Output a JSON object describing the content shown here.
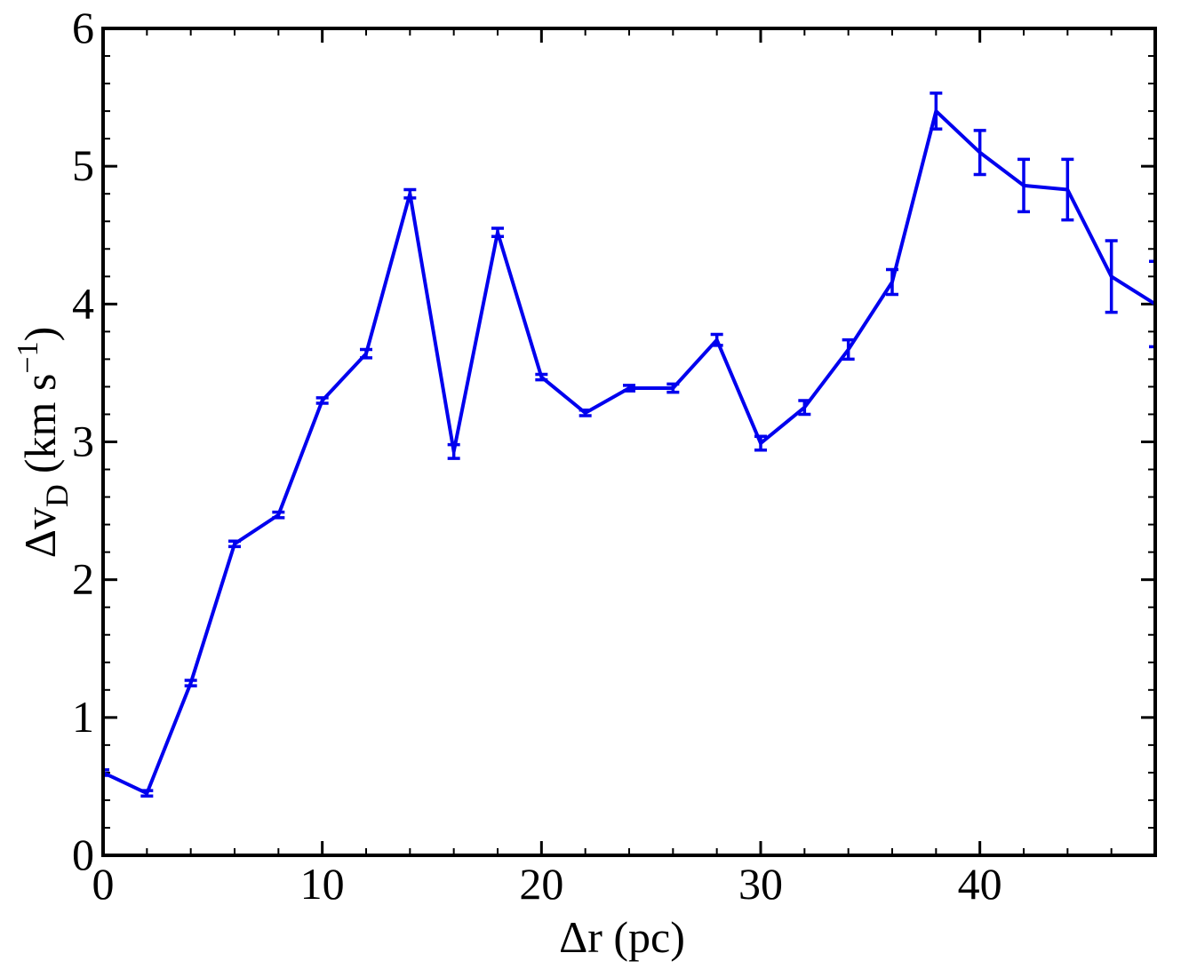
{
  "chart_data": {
    "type": "line",
    "xlabel": "Δr (pc)",
    "ylabel": {
      "main": "Δv",
      "sub": "D",
      "unit": "(km s",
      "sup": "−1",
      "close": ")"
    },
    "x": [
      0,
      2,
      4,
      6,
      8,
      10,
      12,
      14,
      16,
      18,
      20,
      22,
      24,
      26,
      28,
      30,
      32,
      34,
      36,
      38,
      40,
      42,
      44,
      46,
      48
    ],
    "series": [
      {
        "color": "#0000ee",
        "values": [
          0.6,
          0.45,
          1.25,
          2.26,
          2.47,
          3.3,
          3.64,
          4.8,
          2.93,
          4.52,
          3.47,
          3.21,
          3.39,
          3.39,
          3.74,
          2.99,
          3.25,
          3.67,
          4.16,
          5.4,
          5.1,
          4.86,
          4.83,
          4.2,
          4.0
        ],
        "errors": [
          0.02,
          0.02,
          0.02,
          0.02,
          0.02,
          0.02,
          0.03,
          0.03,
          0.05,
          0.03,
          0.02,
          0.02,
          0.02,
          0.03,
          0.04,
          0.05,
          0.05,
          0.07,
          0.09,
          0.13,
          0.16,
          0.19,
          0.22,
          0.26,
          0.31
        ]
      }
    ],
    "xlim": [
      0,
      48
    ],
    "ylim": [
      0,
      6
    ],
    "xticks": [
      0,
      10,
      20,
      30,
      40
    ],
    "yticks": [
      0,
      1,
      2,
      3,
      4,
      5,
      6
    ],
    "xminorticks": [
      2,
      4,
      6,
      8,
      12,
      14,
      16,
      18,
      22,
      24,
      26,
      28,
      32,
      34,
      36,
      38,
      42,
      44,
      46
    ],
    "yminorticks": [
      0.2,
      0.4,
      0.6,
      0.8,
      1.2,
      1.4,
      1.6,
      1.8,
      2.2,
      2.4,
      2.6,
      2.8,
      3.2,
      3.4,
      3.6,
      3.8,
      4.2,
      4.4,
      4.6,
      4.8,
      5.2,
      5.4,
      5.6,
      5.8
    ]
  }
}
